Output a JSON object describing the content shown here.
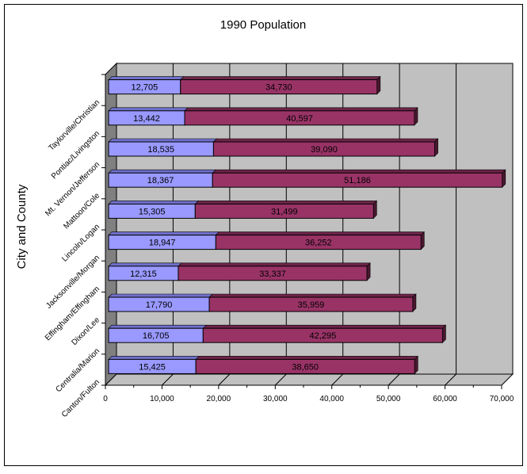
{
  "chart_data": {
    "type": "bar",
    "orientation": "horizontal",
    "stacked": true,
    "style": "3d",
    "title": "1990 Population",
    "ylabel": "City and County",
    "xlabel": "",
    "categories": [
      "Canton/Fulton",
      "Centralia/Marion",
      "Dixon/Lee",
      "Effingham/Effingham",
      "Jacksonville/Morgan",
      "Lincoln/Logan",
      "Mattoon/Cole",
      "Mt. Vernon/Jefferson",
      "Pontiac/Livingston",
      "Taylorville/Christian"
    ],
    "series": [
      {
        "values": [
          15425,
          16705,
          17790,
          12315,
          18947,
          15305,
          18367,
          18535,
          13442,
          12705
        ],
        "color": "#9999ff"
      },
      {
        "values": [
          38650,
          42295,
          35959,
          33337,
          36252,
          31499,
          51186,
          39090,
          40597,
          34730
        ],
        "color": "#993366"
      }
    ],
    "xlim": [
      0,
      70000
    ],
    "xticks": [
      0,
      10000,
      20000,
      30000,
      40000,
      50000,
      60000,
      70000
    ],
    "xtick_labels": [
      "0",
      "10,000",
      "20,000",
      "30,000",
      "40,000",
      "50,000",
      "60,000",
      "70,000"
    ],
    "grid": true,
    "data_labels": true,
    "legend": "none",
    "colors": {
      "wall": "#c0c0c0",
      "side_wall": "#808080",
      "floor": "#c0c0c0"
    }
  }
}
